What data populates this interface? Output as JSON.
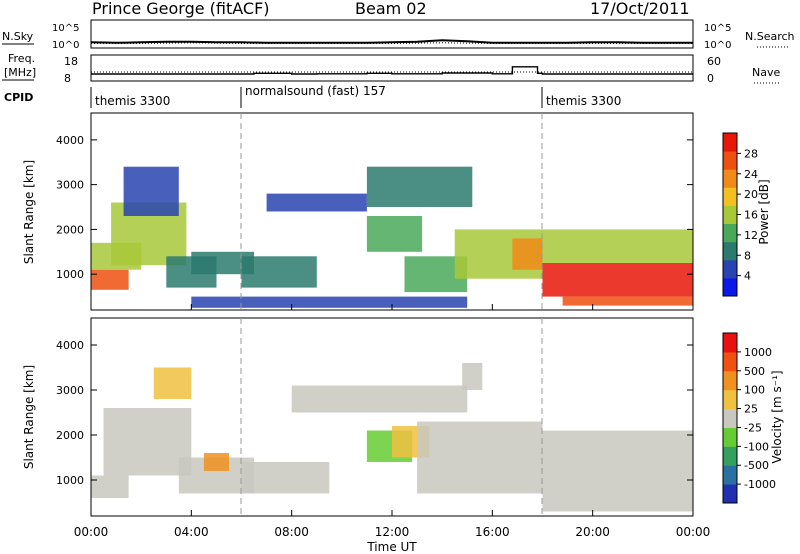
{
  "header": {
    "station": "Prince George (fitACF)",
    "beam": "Beam 02",
    "date": "17/Oct/2011"
  },
  "noise_panel": {
    "left_label": "N.Sky",
    "right_label": "N.Search",
    "left_ticks": [
      "10^5",
      "10^0"
    ],
    "right_ticks": [
      "10^5",
      "10^0"
    ]
  },
  "freq_panel": {
    "left_label_1": "Freq.",
    "left_label_2": "[MHz]",
    "right_label": "Nave",
    "left_ticks": [
      "18",
      "8"
    ],
    "right_ticks": [
      "60",
      "0"
    ]
  },
  "cpid_panel": {
    "label": "CPID",
    "segments": [
      {
        "name": "themis 3300",
        "start_hour": 0,
        "end_hour": 6
      },
      {
        "name": "normalsound (fast) 157",
        "start_hour": 6,
        "end_hour": 18
      },
      {
        "name": "themis 3300",
        "start_hour": 18,
        "end_hour": 24
      }
    ]
  },
  "power_panel": {
    "ylabel": "Slant Range [km]",
    "yticks": [
      "4000",
      "3000",
      "2000",
      "1000"
    ],
    "colorbar_label": "Power [dB]",
    "colorbar_ticks": [
      "28",
      "24",
      "20",
      "16",
      "12",
      "8",
      "4"
    ],
    "colors": [
      "#0a18e8",
      "#2844b0",
      "#2a7a6e",
      "#4aa85a",
      "#a8c838",
      "#f2c020",
      "#f08a18",
      "#ee5010",
      "#e81808"
    ]
  },
  "velocity_panel": {
    "ylabel": "Slant Range [km]",
    "yticks": [
      "4000",
      "3000",
      "2000",
      "1000"
    ],
    "colorbar_label": "Velocity [m s⁻¹]",
    "colorbar_ticks": [
      "1000",
      "500",
      "100",
      "25",
      "-25",
      "-100",
      "-500",
      "-1000"
    ],
    "colors": [
      "#2030b0",
      "#2a70a0",
      "#33a060",
      "#66cc33",
      "#c8c8c0",
      "#f0c040",
      "#f09020",
      "#f05010",
      "#e81010"
    ]
  },
  "xaxis": {
    "label": "Time UT",
    "ticks": [
      "00:00",
      "04:00",
      "08:00",
      "12:00",
      "16:00",
      "20:00",
      "00:00"
    ]
  },
  "chart_data": [
    {
      "type": "line",
      "title": "N.Sky / N.Search",
      "x_unit": "hour UT",
      "xlim": [
        0,
        24
      ],
      "series": [
        {
          "name": "N.Sky",
          "x": [
            0,
            1,
            2,
            3,
            4,
            5,
            6,
            7,
            8,
            9,
            10,
            11,
            12,
            13,
            14,
            15,
            16,
            17,
            18,
            19,
            20,
            21,
            22,
            23,
            24
          ],
          "values": [
            0.9,
            0.8,
            0.9,
            1.0,
            1.0,
            0.9,
            0.9,
            0.8,
            0.8,
            0.8,
            0.8,
            0.8,
            0.9,
            1.0,
            1.3,
            1.1,
            0.8,
            0.8,
            0.8,
            0.8,
            0.9,
            0.9,
            0.8,
            0.8,
            0.8
          ]
        },
        {
          "name": "N.Search",
          "x": [
            0,
            2,
            4,
            6,
            8,
            10,
            12,
            14,
            16,
            18,
            20,
            22,
            24
          ],
          "values": [
            0.7,
            0.7,
            0.8,
            0.7,
            0.7,
            0.7,
            0.7,
            0.8,
            0.7,
            0.7,
            0.7,
            0.7,
            0.7
          ]
        }
      ]
    },
    {
      "type": "line",
      "title": "Freq. / Nave",
      "x_unit": "hour UT",
      "xlim": [
        0,
        24
      ],
      "series": [
        {
          "name": "Freq.",
          "x": [
            0,
            6,
            6.5,
            8,
            9,
            11,
            12,
            14,
            16,
            16.8,
            17.8,
            18,
            24
          ],
          "values": [
            10.5,
            10.5,
            10.8,
            10.5,
            10.6,
            10.8,
            10.6,
            10.9,
            10.6,
            13.5,
            10.8,
            10.5,
            10.5
          ]
        },
        {
          "name": "Nave",
          "x": [
            0,
            24
          ],
          "values": [
            20,
            20
          ]
        }
      ]
    },
    {
      "type": "heatmap",
      "title": "Power [dB]",
      "x_unit": "hour UT",
      "y_unit": "km",
      "xlim": [
        0,
        24
      ],
      "ylim": [
        200,
        4600
      ],
      "zlim": [
        0,
        30
      ],
      "regions": [
        {
          "t0": 0.0,
          "t1": 1.5,
          "r_lo": 650,
          "r_hi": 1100,
          "value": 24
        },
        {
          "t0": 0.0,
          "t1": 2.0,
          "r_lo": 1100,
          "r_hi": 1700,
          "value": 16
        },
        {
          "t0": 0.8,
          "t1": 3.8,
          "r_lo": 1200,
          "r_hi": 2600,
          "value": 14
        },
        {
          "t0": 1.3,
          "t1": 3.5,
          "r_lo": 2300,
          "r_hi": 3400,
          "value": 6
        },
        {
          "t0": 3.0,
          "t1": 5.0,
          "r_lo": 700,
          "r_hi": 1400,
          "value": 9
        },
        {
          "t0": 4.0,
          "t1": 6.5,
          "r_lo": 1000,
          "r_hi": 1500,
          "value": 7
        },
        {
          "t0": 6.0,
          "t1": 9.0,
          "r_lo": 700,
          "r_hi": 1400,
          "value": 8
        },
        {
          "t0": 4.0,
          "t1": 15.0,
          "r_lo": 250,
          "r_hi": 500,
          "value": 6
        },
        {
          "t0": 7.0,
          "t1": 11.0,
          "r_lo": 2400,
          "r_hi": 2800,
          "value": 6
        },
        {
          "t0": 11.0,
          "t1": 15.2,
          "r_lo": 2500,
          "r_hi": 3400,
          "value": 7
        },
        {
          "t0": 11.0,
          "t1": 13.2,
          "r_lo": 1500,
          "r_hi": 2300,
          "value": 12
        },
        {
          "t0": 12.5,
          "t1": 15.0,
          "r_lo": 600,
          "r_hi": 1400,
          "value": 10
        },
        {
          "t0": 14.5,
          "t1": 18.0,
          "r_lo": 900,
          "r_hi": 2000,
          "value": 16
        },
        {
          "t0": 16.8,
          "t1": 18.0,
          "r_lo": 1100,
          "r_hi": 1800,
          "value": 22
        },
        {
          "t0": 18.0,
          "t1": 24.0,
          "r_lo": 500,
          "r_hi": 1250,
          "value": 27
        },
        {
          "t0": 18.0,
          "t1": 24.0,
          "r_lo": 1250,
          "r_hi": 2000,
          "value": 14
        },
        {
          "t0": 18.8,
          "t1": 24.0,
          "r_lo": 300,
          "r_hi": 500,
          "value": 26
        }
      ]
    },
    {
      "type": "heatmap",
      "title": "Velocity [m s⁻¹]",
      "x_unit": "hour UT",
      "y_unit": "km",
      "xlim": [
        0,
        24
      ],
      "ylim": [
        200,
        4600
      ],
      "zlim": [
        -1000,
        1000
      ],
      "regions": [
        {
          "t0": 0.0,
          "t1": 1.5,
          "r_lo": 600,
          "r_hi": 1100,
          "value": 0
        },
        {
          "t0": 0.5,
          "t1": 4.0,
          "r_lo": 1100,
          "r_hi": 2600,
          "value": 0
        },
        {
          "t0": 2.5,
          "t1": 4.0,
          "r_lo": 2800,
          "r_hi": 3500,
          "value": -300
        },
        {
          "t0": 3.5,
          "t1": 6.5,
          "r_lo": 700,
          "r_hi": 1500,
          "value": 0
        },
        {
          "t0": 4.5,
          "t1": 5.5,
          "r_lo": 1200,
          "r_hi": 1600,
          "value": -400
        },
        {
          "t0": 6.0,
          "t1": 9.5,
          "r_lo": 700,
          "r_hi": 1400,
          "value": 0
        },
        {
          "t0": 8.0,
          "t1": 15.0,
          "r_lo": 2500,
          "r_hi": 3100,
          "value": 0
        },
        {
          "t0": 11.0,
          "t1": 12.8,
          "r_lo": 1400,
          "r_hi": 2100,
          "value": 300
        },
        {
          "t0": 12.0,
          "t1": 13.5,
          "r_lo": 1500,
          "r_hi": 2200,
          "value": -200
        },
        {
          "t0": 13.0,
          "t1": 18.0,
          "r_lo": 700,
          "r_hi": 2300,
          "value": 0
        },
        {
          "t0": 14.8,
          "t1": 15.6,
          "r_lo": 3000,
          "r_hi": 3600,
          "value": 80
        },
        {
          "t0": 18.0,
          "t1": 24.0,
          "r_lo": 300,
          "r_hi": 1300,
          "value": 0
        },
        {
          "t0": 18.0,
          "t1": 24.0,
          "r_lo": 1300,
          "r_hi": 2100,
          "value": 0
        }
      ]
    }
  ]
}
